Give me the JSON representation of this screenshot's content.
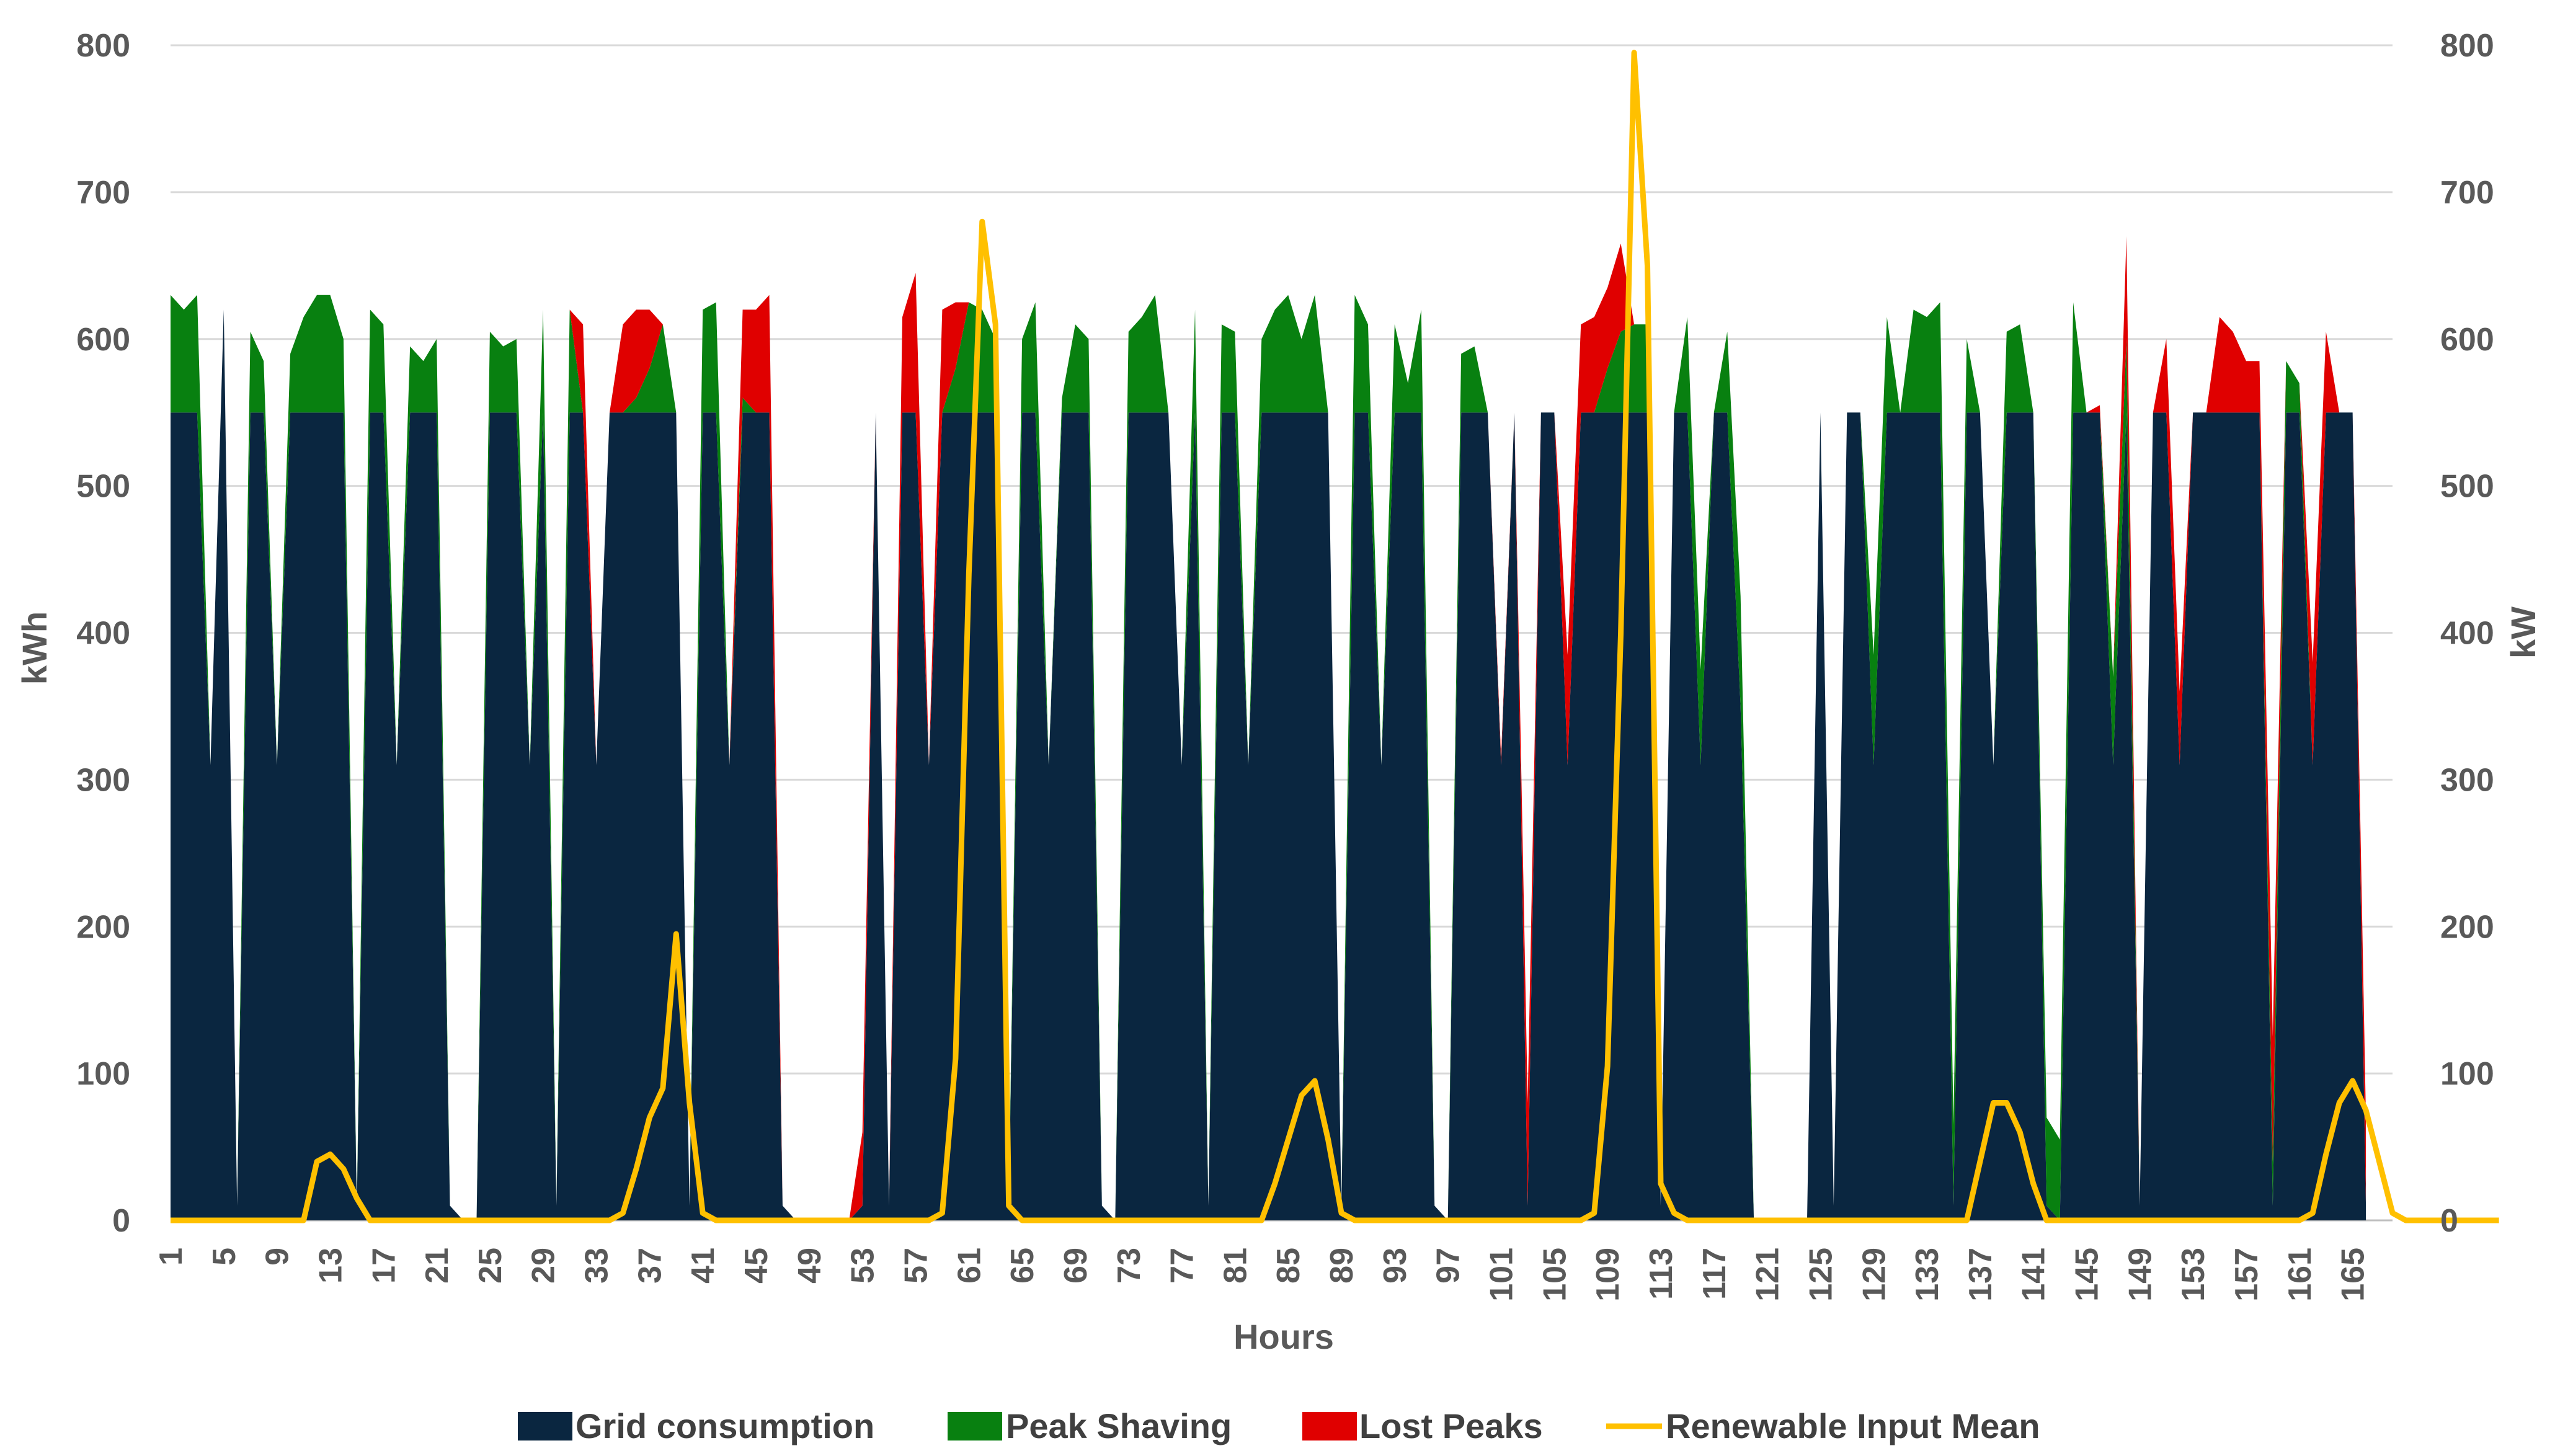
{
  "chart_data": {
    "type": "area",
    "title": "",
    "xlabel": "Hours",
    "ylabel_left": "kWh",
    "ylabel_right": "kW",
    "ylim_left": [
      0,
      800
    ],
    "ylim_right": [
      0,
      800
    ],
    "y_ticks": [
      0,
      100,
      200,
      300,
      400,
      500,
      600,
      700,
      800
    ],
    "grid": true,
    "legend_position": "bottom",
    "x_start": 1,
    "x_end": 168,
    "x_tick_labels": [
      "1",
      "5",
      "9",
      "13",
      "17",
      "21",
      "25",
      "29",
      "33",
      "37",
      "41",
      "45",
      "49",
      "53",
      "57",
      "61",
      "65",
      "69",
      "73",
      "77",
      "81",
      "85",
      "89",
      "93",
      "97",
      "101",
      "105",
      "109",
      "113",
      "117",
      "121",
      "125",
      "129",
      "133",
      "137",
      "141",
      "145",
      "149",
      "153",
      "157",
      "161",
      "165"
    ],
    "series": [
      {
        "name": "Grid consumption",
        "color": "#0a2640",
        "stack": true,
        "values": [
          550,
          550,
          550,
          310,
          620,
          10,
          550,
          550,
          310,
          550,
          550,
          550,
          550,
          550,
          10,
          550,
          550,
          310,
          550,
          550,
          550,
          10,
          0,
          0,
          550,
          550,
          550,
          310,
          550,
          10,
          550,
          550,
          310,
          550,
          550,
          550,
          550,
          550,
          550,
          10,
          550,
          550,
          310,
          550,
          550,
          550,
          10,
          0,
          0,
          0,
          0,
          0,
          10,
          550,
          10,
          550,
          550,
          310,
          550,
          550,
          550,
          550,
          550,
          10,
          550,
          550,
          310,
          550,
          550,
          550,
          10,
          0,
          550,
          550,
          550,
          550,
          310,
          550,
          10,
          550,
          550,
          310,
          550,
          550,
          550,
          550,
          550,
          550,
          10,
          550,
          550,
          310,
          550,
          550,
          550,
          10,
          0,
          550,
          550,
          550,
          310,
          550,
          10,
          550,
          550,
          310,
          550,
          550,
          550,
          550,
          550,
          550,
          10,
          550,
          550,
          310,
          550,
          550,
          350,
          0,
          0,
          0,
          0,
          0,
          550,
          10,
          550,
          550,
          310,
          550,
          550,
          550,
          550,
          550,
          10,
          550,
          550,
          310,
          550,
          550,
          550,
          10,
          0,
          550,
          550,
          550,
          310,
          550,
          10,
          550,
          550,
          310,
          550,
          550,
          550,
          550,
          550,
          550,
          10,
          550,
          550,
          310,
          550,
          550,
          550,
          10
        ]
      },
      {
        "name": "Peak Shaving",
        "color": "#088010",
        "stack": true,
        "values": [
          80,
          70,
          80,
          0,
          0,
          0,
          55,
          35,
          0,
          40,
          65,
          80,
          80,
          50,
          0,
          70,
          60,
          0,
          45,
          35,
          50,
          0,
          0,
          0,
          55,
          45,
          50,
          0,
          70,
          0,
          70,
          0,
          0,
          0,
          0,
          10,
          30,
          60,
          0,
          0,
          70,
          75,
          0,
          10,
          0,
          0,
          0,
          0,
          0,
          0,
          0,
          0,
          0,
          0,
          0,
          0,
          0,
          0,
          0,
          30,
          75,
          70,
          50,
          0,
          50,
          75,
          0,
          10,
          60,
          50,
          0,
          0,
          55,
          65,
          80,
          0,
          0,
          70,
          0,
          60,
          55,
          0,
          50,
          70,
          80,
          50,
          80,
          0,
          0,
          80,
          60,
          0,
          60,
          20,
          70,
          0,
          0,
          40,
          45,
          0,
          0,
          0,
          0,
          0,
          0,
          0,
          0,
          0,
          30,
          55,
          60,
          60,
          0,
          0,
          65,
          65,
          0,
          55,
          75,
          0,
          0,
          0,
          0,
          0,
          0,
          0,
          0,
          0,
          75,
          65,
          0,
          70,
          65,
          75,
          55,
          50,
          0,
          0,
          55,
          60,
          0,
          60,
          55,
          75,
          0,
          0,
          60,
          50,
          0,
          0,
          0,
          0,
          0,
          0,
          0,
          0,
          0,
          0,
          30,
          35,
          20,
          0,
          0,
          0,
          0,
          0,
          0,
          0
        ]
      },
      {
        "name": "Lost Peaks",
        "color": "#e00000",
        "stack": true,
        "values": [
          0,
          0,
          0,
          0,
          0,
          0,
          0,
          0,
          0,
          0,
          0,
          0,
          0,
          0,
          0,
          0,
          0,
          0,
          0,
          0,
          0,
          0,
          0,
          0,
          0,
          0,
          0,
          0,
          0,
          0,
          0,
          60,
          0,
          0,
          60,
          60,
          40,
          0,
          0,
          0,
          0,
          0,
          0,
          60,
          70,
          80,
          0,
          0,
          0,
          0,
          0,
          0,
          50,
          0,
          0,
          65,
          95,
          0,
          70,
          45,
          0,
          0,
          0,
          0,
          0,
          0,
          0,
          0,
          0,
          0,
          0,
          0,
          0,
          0,
          0,
          0,
          0,
          0,
          0,
          0,
          0,
          0,
          0,
          0,
          0,
          0,
          0,
          0,
          0,
          0,
          0,
          0,
          0,
          0,
          0,
          0,
          0,
          0,
          0,
          0,
          5,
          0,
          70,
          0,
          0,
          75,
          60,
          65,
          55,
          60,
          0,
          0,
          0,
          0,
          0,
          0,
          0,
          0,
          0,
          0,
          0,
          0,
          0,
          0,
          0,
          0,
          0,
          0,
          0,
          0,
          0,
          0,
          0,
          0,
          0,
          0,
          0,
          0,
          0,
          0,
          0,
          0,
          0,
          0,
          0,
          5,
          0,
          70,
          0,
          0,
          50,
          50,
          0,
          0,
          65,
          55,
          35,
          35,
          85,
          0,
          0,
          70,
          55,
          0,
          0,
          60,
          45,
          0
        ]
      },
      {
        "name": "Renewable Input Mean",
        "color": "#ffc000",
        "type": "line",
        "axis": "right",
        "values": [
          0,
          0,
          0,
          0,
          0,
          0,
          0,
          0,
          0,
          0,
          0,
          40,
          45,
          35,
          15,
          0,
          0,
          0,
          0,
          0,
          0,
          0,
          0,
          0,
          0,
          0,
          0,
          0,
          0,
          0,
          0,
          0,
          0,
          0,
          5,
          35,
          70,
          90,
          195,
          80,
          5,
          0,
          0,
          0,
          0,
          0,
          0,
          0,
          0,
          0,
          0,
          0,
          0,
          0,
          0,
          0,
          0,
          0,
          5,
          110,
          440,
          680,
          610,
          10,
          0,
          0,
          0,
          0,
          0,
          0,
          0,
          0,
          0,
          0,
          0,
          0,
          0,
          0,
          0,
          0,
          0,
          0,
          0,
          25,
          55,
          85,
          95,
          55,
          5,
          0,
          0,
          0,
          0,
          0,
          0,
          0,
          0,
          0,
          0,
          0,
          0,
          0,
          0,
          0,
          0,
          0,
          0,
          5,
          105,
          400,
          795,
          650,
          25,
          5,
          0,
          0,
          0,
          0,
          0,
          0,
          0,
          0,
          0,
          0,
          0,
          0,
          0,
          0,
          0,
          0,
          0,
          0,
          0,
          0,
          0,
          0,
          40,
          80,
          80,
          60,
          25,
          0,
          0,
          0,
          0,
          0,
          0,
          0,
          0,
          0,
          0,
          0,
          0,
          0,
          0,
          0,
          0,
          0,
          0,
          0,
          0,
          5,
          45,
          80,
          95,
          75,
          40,
          5,
          0,
          0,
          0,
          0,
          0,
          0,
          0,
          0
        ]
      }
    ]
  }
}
